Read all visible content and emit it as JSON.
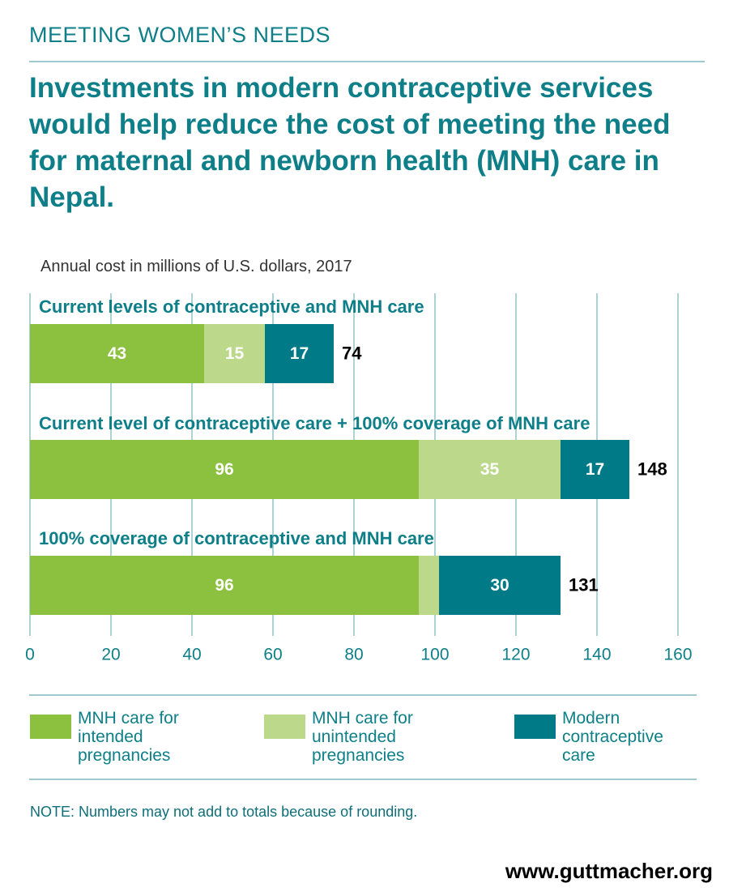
{
  "header": "MEETING WOMEN’S NEEDS",
  "chart_data": {
    "type": "stacked-bar",
    "orientation": "horizontal",
    "title": "Investments in modern contraceptive services would help reduce the cost of meeting the need for maternal and newborn health (MNH) care in Nepal.",
    "subtitle": "Annual cost in millions of U.S. dollars, 2017",
    "categories": [
      "Current levels of contraceptive and MNH care",
      "Current level of contraceptive care + 100% coverage of MNH care",
      "100% coverage of contraceptive and MNH care"
    ],
    "series": [
      {
        "name": "MNH care for intended pregnancies",
        "color": "#8cc03f",
        "values": [
          43,
          96,
          96
        ]
      },
      {
        "name": "MNH care for unintended pregnancies",
        "color": "#bcd98b",
        "values": [
          15,
          35,
          5
        ],
        "value_labels": [
          "15",
          "35",
          null
        ]
      },
      {
        "name": "Modern contraceptive care",
        "color": "#007a87",
        "values": [
          17,
          17,
          30
        ]
      }
    ],
    "totals": [
      74,
      148,
      131
    ],
    "xlim": [
      0,
      160
    ],
    "xticks": [
      0,
      20,
      40,
      60,
      80,
      100,
      120,
      140,
      160
    ],
    "grid": true,
    "note": "NOTE: Numbers may not add to totals because of rounding."
  },
  "footer": "www.guttmacher.org"
}
